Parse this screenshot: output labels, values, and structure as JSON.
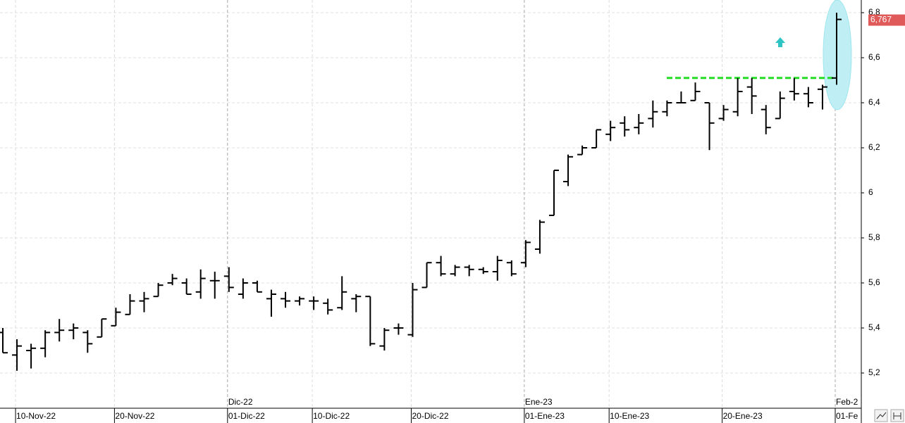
{
  "chart_data": {
    "type": "ohlc",
    "categories": [
      null,
      "10-Nov-22",
      null,
      null,
      null,
      null,
      null,
      null,
      "20-Nov-22",
      null,
      null,
      null,
      null,
      null,
      null,
      null,
      "01-Dic-22",
      null,
      null,
      null,
      null,
      null,
      "10-Dic-22",
      null,
      null,
      null,
      null,
      null,
      null,
      "20-Dic-22",
      null,
      null,
      null,
      null,
      null,
      null,
      null,
      "01-Ene-23",
      null,
      null,
      null,
      null,
      null,
      "10-Ene-23",
      null,
      null,
      null,
      null,
      null,
      null,
      null,
      "20-Ene-23",
      null,
      null,
      null,
      null,
      null,
      null,
      null,
      "01-Fe"
    ],
    "month_labels": [
      null,
      null,
      null,
      null,
      null,
      null,
      null,
      null,
      null,
      null,
      null,
      null,
      null,
      null,
      null,
      null,
      "Dic-22",
      null,
      null,
      null,
      null,
      null,
      null,
      null,
      null,
      null,
      null,
      null,
      null,
      null,
      null,
      null,
      null,
      null,
      null,
      null,
      null,
      "Ene-23",
      null,
      null,
      null,
      null,
      null,
      null,
      null,
      null,
      null,
      null,
      null,
      null,
      null,
      null,
      null,
      null,
      null,
      null,
      null,
      null,
      null,
      "Feb-2"
    ],
    "open": [
      5.38,
      5.28,
      5.3,
      5.31,
      5.38,
      5.39,
      5.38,
      5.36,
      5.41,
      5.46,
      5.52,
      5.54,
      5.6,
      5.6,
      5.56,
      5.61,
      5.63,
      5.55,
      5.6,
      5.53,
      5.53,
      5.52,
      5.52,
      5.51,
      5.49,
      5.53,
      5.54,
      5.32,
      5.4,
      5.37,
      5.58,
      5.69,
      5.64,
      5.67,
      5.66,
      5.65,
      5.69,
      5.69,
      5.75,
      5.9,
      6.05,
      6.17,
      6.2,
      6.26,
      6.31,
      6.29,
      6.33,
      6.36,
      6.4,
      6.41,
      6.4,
      6.33,
      6.36,
      6.47,
      6.37,
      6.33,
      6.45,
      6.44,
      6.46,
      6.51
    ],
    "high": [
      5.4,
      5.35,
      5.33,
      5.39,
      5.44,
      5.42,
      5.39,
      5.44,
      5.49,
      5.55,
      5.56,
      5.6,
      5.64,
      5.62,
      5.66,
      5.65,
      5.67,
      5.62,
      5.61,
      5.57,
      5.56,
      5.54,
      5.54,
      5.53,
      5.63,
      5.55,
      5.54,
      5.4,
      5.42,
      5.6,
      5.69,
      5.72,
      5.68,
      5.68,
      5.67,
      5.72,
      5.7,
      5.79,
      5.88,
      6.1,
      6.17,
      6.21,
      6.28,
      6.32,
      6.34,
      6.35,
      6.41,
      6.41,
      6.45,
      6.49,
      6.4,
      6.39,
      6.51,
      6.51,
      6.39,
      6.45,
      6.51,
      6.47,
      6.48,
      6.8
    ],
    "low": [
      5.29,
      5.21,
      5.22,
      5.27,
      5.34,
      5.35,
      5.29,
      5.36,
      5.41,
      5.46,
      5.47,
      5.54,
      5.59,
      5.55,
      5.53,
      5.53,
      5.56,
      5.53,
      5.56,
      5.45,
      5.49,
      5.5,
      5.48,
      5.46,
      5.48,
      5.47,
      5.32,
      5.3,
      5.37,
      5.36,
      5.58,
      5.63,
      5.63,
      5.63,
      5.64,
      5.61,
      5.63,
      5.67,
      5.73,
      5.9,
      6.03,
      6.17,
      6.2,
      6.23,
      6.25,
      6.26,
      6.29,
      6.34,
      6.4,
      6.41,
      6.19,
      6.32,
      6.34,
      6.35,
      6.26,
      6.33,
      6.41,
      6.38,
      6.37,
      6.48
    ],
    "close": [
      5.29,
      5.32,
      5.31,
      5.38,
      5.39,
      5.4,
      5.33,
      5.44,
      5.47,
      5.52,
      5.53,
      5.59,
      5.62,
      5.55,
      5.62,
      5.61,
      5.58,
      5.6,
      5.56,
      5.55,
      5.52,
      5.53,
      5.52,
      5.48,
      5.56,
      5.54,
      5.33,
      5.39,
      5.4,
      5.57,
      5.69,
      5.64,
      5.67,
      5.66,
      5.65,
      5.7,
      5.64,
      5.78,
      5.87,
      6.1,
      6.16,
      6.2,
      6.28,
      6.29,
      6.28,
      6.31,
      6.36,
      6.4,
      6.4,
      6.45,
      6.31,
      6.37,
      6.45,
      6.43,
      6.29,
      6.42,
      6.44,
      6.4,
      6.47,
      6.77
    ],
    "color": "#000000",
    "ylim": [
      5.1,
      6.85
    ],
    "yticks": [
      {
        "value": 5.2,
        "label": "5,2"
      },
      {
        "value": 5.4,
        "label": "5,4"
      },
      {
        "value": 5.6,
        "label": "5,6"
      },
      {
        "value": 5.8,
        "label": "5,8"
      },
      6,
      {
        "value": 6.2,
        "label": "6,2"
      },
      {
        "value": 6.4,
        "label": "6,4"
      },
      {
        "value": 6.6,
        "label": "6,6"
      },
      {
        "value": 6.8,
        "label": "6,8"
      }
    ],
    "grid": true,
    "last_price": {
      "value": 6.767,
      "label": "6,767",
      "color": "#e05a5a"
    },
    "resistance": {
      "value": 6.51,
      "color": "#22dd22"
    }
  }
}
